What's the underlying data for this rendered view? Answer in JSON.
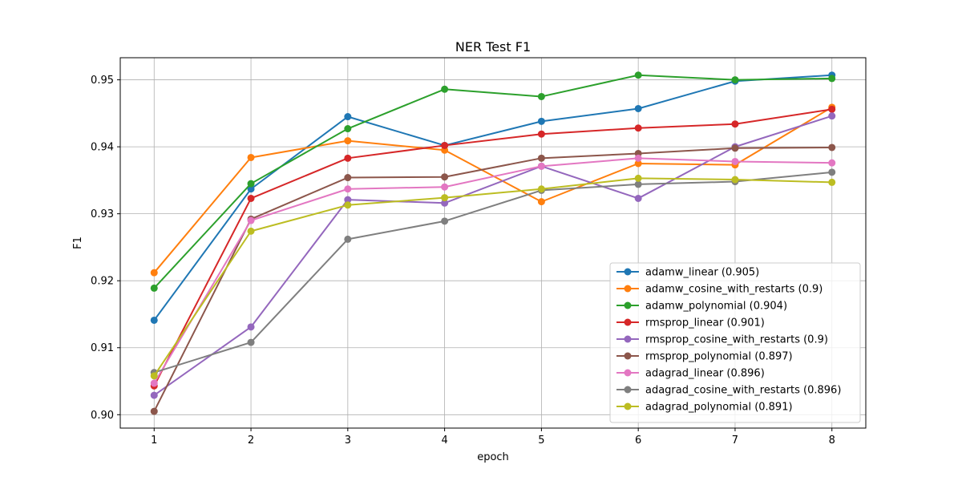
{
  "chart_data": {
    "type": "line",
    "title": "NER Test F1",
    "xlabel": "epoch",
    "ylabel": "F1",
    "x": [
      1,
      2,
      3,
      4,
      5,
      6,
      7,
      8
    ],
    "xlim": [
      0.65,
      8.35
    ],
    "ylim": [
      0.898,
      0.9533
    ],
    "yticks": [
      "0.90",
      "0.91",
      "0.92",
      "0.93",
      "0.94",
      "0.95"
    ],
    "grid": true,
    "legend_position": "lower-right",
    "series": [
      {
        "name": "adamw_linear (0.905)",
        "color": "#1f77b4",
        "values": [
          0.9141,
          0.9337,
          0.9445,
          0.9402,
          0.9438,
          0.9457,
          0.9498,
          0.9507
        ]
      },
      {
        "name": "adamw_cosine_with_restarts (0.9)",
        "color": "#ff7f0e",
        "values": [
          0.9212,
          0.9384,
          0.9409,
          0.9395,
          0.9318,
          0.9375,
          0.9373,
          0.9459
        ]
      },
      {
        "name": "adamw_polynomial (0.904)",
        "color": "#2ca02c",
        "values": [
          0.9189,
          0.9345,
          0.9427,
          0.9486,
          0.9475,
          0.9507,
          0.95,
          0.9502
        ]
      },
      {
        "name": "rmsprop_linear (0.901)",
        "color": "#d62728",
        "values": [
          0.9043,
          0.9323,
          0.9383,
          0.9402,
          0.9419,
          0.9428,
          0.9434,
          0.9456
        ]
      },
      {
        "name": "rmsprop_cosine_with_restarts (0.9)",
        "color": "#9467bd",
        "values": [
          0.9029,
          0.9131,
          0.9321,
          0.9316,
          0.9371,
          0.9323,
          0.94,
          0.9446
        ]
      },
      {
        "name": "rmsprop_polynomial (0.897)",
        "color": "#8c564b",
        "values": [
          0.9005,
          0.9292,
          0.9354,
          0.9355,
          0.9383,
          0.939,
          0.9398,
          0.9399
        ]
      },
      {
        "name": "adagrad_linear (0.896)",
        "color": "#e377c2",
        "values": [
          0.9047,
          0.929,
          0.9337,
          0.934,
          0.9371,
          0.9383,
          0.9378,
          0.9376
        ]
      },
      {
        "name": "adagrad_cosine_with_restarts (0.896)",
        "color": "#7f7f7f",
        "values": [
          0.9063,
          0.9108,
          0.9262,
          0.9289,
          0.9335,
          0.9344,
          0.9348,
          0.9362
        ]
      },
      {
        "name": "adagrad_polynomial (0.891)",
        "color": "#bcbd22",
        "values": [
          0.9058,
          0.9274,
          0.9313,
          0.9324,
          0.9337,
          0.9353,
          0.9351,
          0.9347
        ]
      }
    ]
  }
}
